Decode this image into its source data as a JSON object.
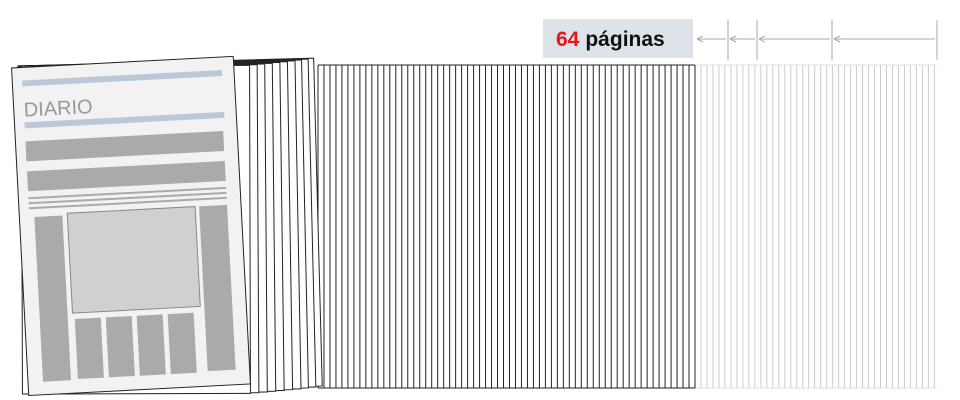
{
  "label": {
    "count": 64,
    "unit": "páginas"
  },
  "newspaper": {
    "masthead": "DIARIO"
  }
}
